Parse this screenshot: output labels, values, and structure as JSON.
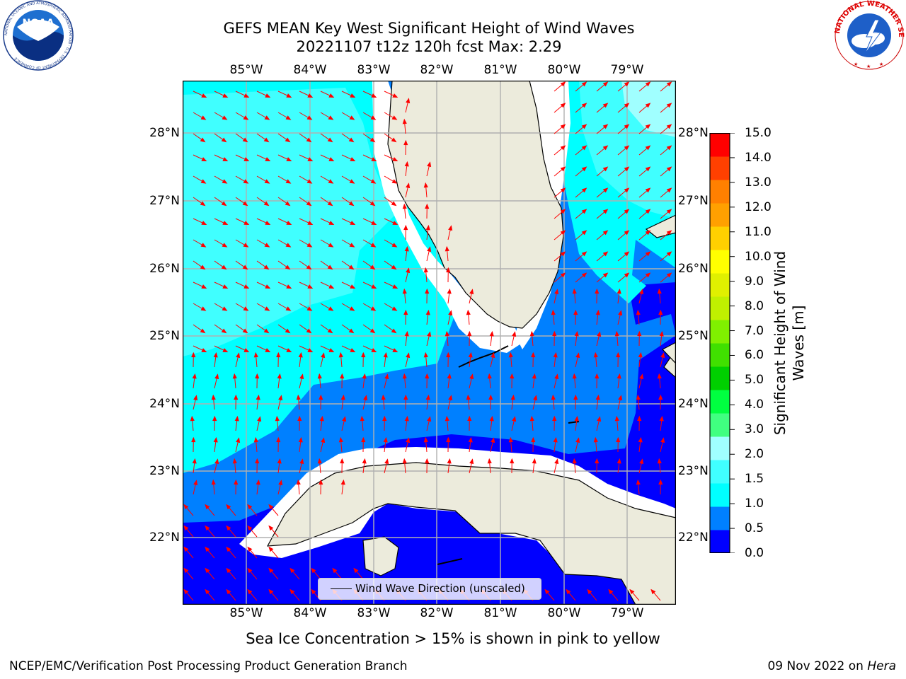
{
  "title": {
    "line1": "GEFS MEAN Key West Significant Height of Wind Waves",
    "line2": "20221107 t12z 120h fcst   Max: 2.29"
  },
  "map": {
    "lon_ticks": [
      "85°W",
      "84°W",
      "83°W",
      "82°W",
      "81°W",
      "80°W",
      "79°W"
    ],
    "lat_ticks": [
      "28°N",
      "27°N",
      "26°N",
      "25°N",
      "24°N",
      "23°N",
      "22°N"
    ],
    "legend_label": "Wind Wave Direction (unscaled)",
    "colors": {
      "land": "#ecebdc",
      "missing_coast": "#ffffff",
      "coast_line": "#000000",
      "grid": "#b0b0b0",
      "arrow": "#ff0000"
    }
  },
  "colorbar": {
    "label_line1": "Significant Height of Wind",
    "label_line2": "Waves [m]",
    "ticks": [
      "15.0",
      "14.0",
      "13.0",
      "12.0",
      "11.0",
      "10.0",
      "9.0",
      "8.0",
      "7.0",
      "6.0",
      "5.0",
      "4.0",
      "3.0",
      "2.0",
      "1.5",
      "1.0",
      "0.5",
      "0.0"
    ],
    "colors_bottom_to_top": [
      "#0000ff",
      "#0080ff",
      "#00ffff",
      "#40ffff",
      "#a0ffff",
      "#40ff80",
      "#00ff40",
      "#00d000",
      "#40e000",
      "#80f000",
      "#c0f000",
      "#e0f000",
      "#ffff00",
      "#ffd000",
      "#ffa000",
      "#ff8000",
      "#ff4000",
      "#ff0000"
    ]
  },
  "logos": {
    "noaa_text": "NOAA",
    "noaa_ring_text": "NATIONAL OCEANIC AND ATMOSPHERIC ADMINISTRATION · U.S. DEPARTMENT OF COMMERCE",
    "nws_ring_text": "NATIONAL WEATHER SERVICE"
  },
  "footer": {
    "note": "Sea Ice Concentration > 15% is shown in pink to yellow",
    "left": "NCEP/EMC/Verification Post Processing Product Generation Branch",
    "right_date": "09 Nov 2022 on ",
    "right_host": "Hera"
  }
}
